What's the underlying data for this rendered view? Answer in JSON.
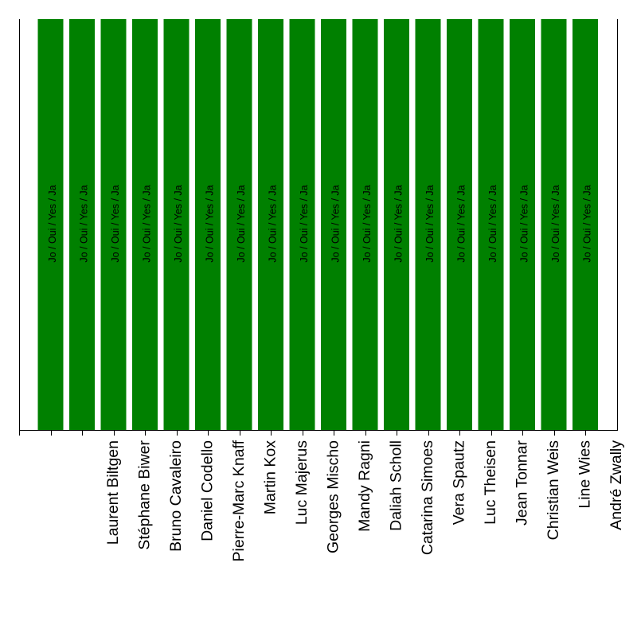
{
  "chart_data": {
    "type": "bar",
    "categories": [
      "",
      "Laurent Biltgen",
      "Stéphane Biwer",
      "Bruno Cavaleiro",
      "Daniel Codello",
      "Pierre-Marc Knaff",
      "Martin Kox",
      "Luc Majerus",
      "Georges Mischo",
      "Mandy Ragni",
      "Daliah Scholl",
      "Catarina Simoes",
      "Vera Spautz",
      "Luc Theisen",
      "Jean Tonnar",
      "Christian Weis",
      "Line Wies",
      "André Zwally"
    ],
    "values": [
      1,
      1,
      1,
      1,
      1,
      1,
      1,
      1,
      1,
      1,
      1,
      1,
      1,
      1,
      1,
      1,
      1,
      1
    ],
    "data_labels": [
      "Jo / Oui / Yes / Ja",
      "Jo / Oui / Yes / Ja",
      "Jo / Oui / Yes / Ja",
      "Jo / Oui / Yes / Ja",
      "Jo / Oui / Yes / Ja",
      "Jo / Oui / Yes / Ja",
      "Jo / Oui / Yes / Ja",
      "Jo / Oui / Yes / Ja",
      "Jo / Oui / Yes / Ja",
      "Jo / Oui / Yes / Ja",
      "Jo / Oui / Yes / Ja",
      "Jo / Oui / Yes / Ja",
      "Jo / Oui / Yes / Ja",
      "Jo / Oui / Yes / Ja",
      "Jo / Oui / Yes / Ja",
      "Jo / Oui / Yes / Ja",
      "Jo / Oui / Yes / Ja",
      "Jo / Oui / Yes / Ja"
    ],
    "title": "",
    "xlabel": "",
    "ylabel": "",
    "ylim": [
      0,
      1
    ],
    "grid": false,
    "bar_color": "#008000"
  }
}
